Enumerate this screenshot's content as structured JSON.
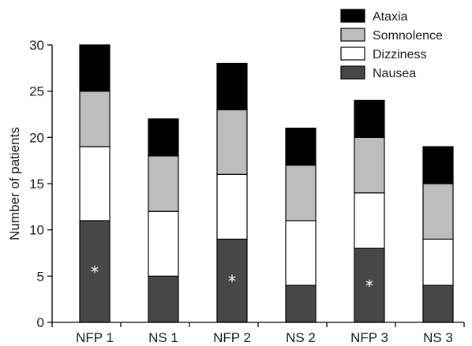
{
  "chart_data": {
    "type": "bar",
    "stacked": true,
    "title": "",
    "xlabel": "",
    "ylabel": "Number of patients",
    "ylim": [
      0,
      30
    ],
    "yticks": [
      0,
      5,
      10,
      15,
      20,
      25,
      30
    ],
    "grid": false,
    "legend_position": "top-right",
    "categories": [
      "NFP 1",
      "NS 1",
      "NFP 2",
      "NS 2",
      "NFP 3",
      "NS 3"
    ],
    "series": [
      {
        "name": "Nausea",
        "color": "#474747",
        "values": [
          11,
          5,
          9,
          4,
          8,
          4
        ]
      },
      {
        "name": "Dizziness",
        "color": "#ffffff",
        "values": [
          8,
          7,
          7,
          7,
          6,
          5
        ]
      },
      {
        "name": "Somnolence",
        "color": "#bdbdbd",
        "values": [
          6,
          6,
          7,
          6,
          6,
          6
        ]
      },
      {
        "name": "Ataxia",
        "color": "#000000",
        "values": [
          5,
          4,
          5,
          4,
          4,
          4
        ]
      }
    ],
    "legend_order": [
      "Ataxia",
      "Somnolence",
      "Dizziness",
      "Nausea"
    ],
    "annotations": [
      {
        "category": "NFP 1",
        "series": "Nausea",
        "text": "*"
      },
      {
        "category": "NFP 2",
        "series": "Nausea",
        "text": "*"
      },
      {
        "category": "NFP 3",
        "series": "Nausea",
        "text": "*"
      }
    ]
  }
}
